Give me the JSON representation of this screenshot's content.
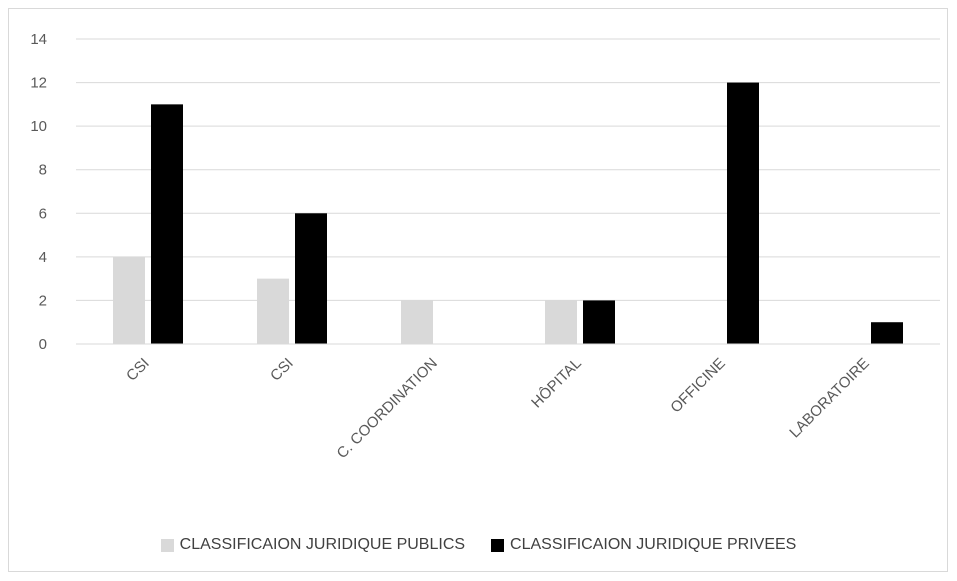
{
  "chart_data": {
    "type": "bar",
    "categories": [
      "CSI",
      "CSI",
      "C. COORDINATION",
      "HÔPITAL",
      "OFFICINE",
      "LABORATOIRE"
    ],
    "series": [
      {
        "name": "CLASSIFICAION JURIDIQUE PUBLICS",
        "values": [
          4,
          3,
          2,
          2,
          0,
          0
        ],
        "color": "#d9d9d9"
      },
      {
        "name": "CLASSIFICAION JURIDIQUE PRIVEES",
        "values": [
          11,
          6,
          0,
          2,
          12,
          1
        ],
        "color": "#000000"
      }
    ],
    "yticks": [
      "0",
      "2",
      "4",
      "6",
      "8",
      "10",
      "12",
      "14"
    ],
    "ylim": [
      0,
      14
    ],
    "grid": true,
    "legend_position": "bottom",
    "gridline_color": "#d9d9d9",
    "axis_color": "#d9d9d9"
  }
}
